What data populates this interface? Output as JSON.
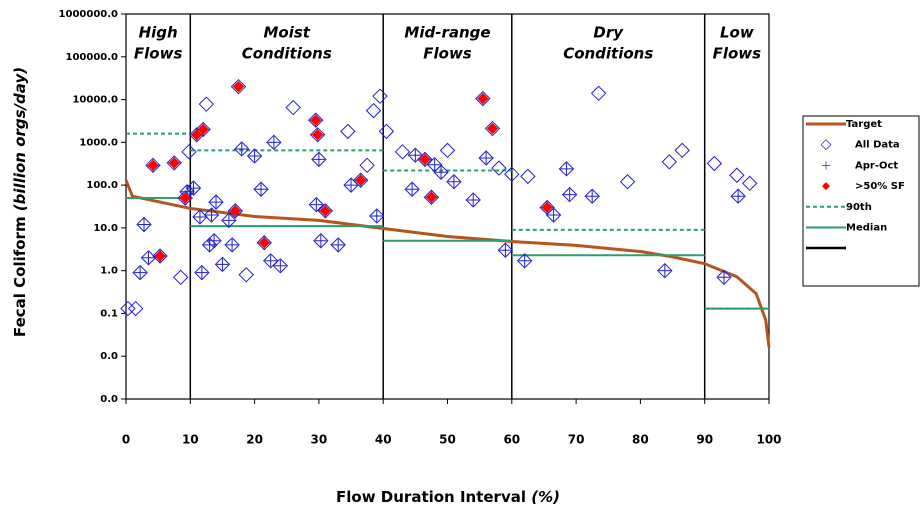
{
  "chart_data": {
    "type": "scatter",
    "y_label": "Fecal Coliform",
    "y_label_unit": "(billion orgs/day)",
    "x_label": "Flow Duration Interval",
    "x_label_unit": "(%)",
    "xlim": [
      0,
      100
    ],
    "xticks": [
      0,
      10,
      20,
      30,
      40,
      50,
      60,
      70,
      80,
      90,
      100
    ],
    "ylim": [
      0.001,
      1000000
    ],
    "log_y": true,
    "yticks": [
      {
        "value": 0.001,
        "label": "0.0"
      },
      {
        "value": 0.01,
        "label": "0.0"
      },
      {
        "value": 0.1,
        "label": "0.1"
      },
      {
        "value": 1,
        "label": "1.0"
      },
      {
        "value": 10,
        "label": "10.0"
      },
      {
        "value": 100,
        "label": "100.0"
      },
      {
        "value": 1000,
        "label": "1000.0"
      },
      {
        "value": 10000,
        "label": "10000.0"
      },
      {
        "value": 100000,
        "label": "100000.0"
      },
      {
        "value": 1000000,
        "label": "1000000.0"
      }
    ],
    "zones": [
      {
        "label": [
          "High",
          "Flows"
        ],
        "start": 0,
        "end": 10
      },
      {
        "label": [
          "Moist",
          "Conditions"
        ],
        "start": 10,
        "end": 40
      },
      {
        "label": [
          "Mid-range",
          "Flows"
        ],
        "start": 40,
        "end": 60
      },
      {
        "label": [
          "Dry",
          "Conditions"
        ],
        "start": 60,
        "end": 90
      },
      {
        "label": [
          "Low",
          "Flows"
        ],
        "start": 90,
        "end": 100
      }
    ],
    "legend": "right",
    "series": [
      {
        "name": "Target",
        "style": "line",
        "color": "#b5541c",
        "x": [
          0,
          1,
          10,
          20,
          30,
          40,
          50,
          60,
          70,
          80,
          85,
          90,
          95,
          98,
          99.5,
          100
        ],
        "values": [
          130,
          55,
          28.5,
          18.5,
          15,
          9.7,
          6.3,
          4.8,
          3.9,
          2.8,
          2.1,
          1.46,
          0.72,
          0.29,
          0.07,
          0.016
        ]
      },
      {
        "name": "All Data",
        "style": "diamond-open",
        "color": "#1f1fd0",
        "x": [
          0.3,
          1.5,
          2.2,
          2.8,
          3.5,
          4.2,
          5.3,
          7.5,
          8.5,
          9.2,
          9.5,
          9.8,
          10.5,
          11,
          11.5,
          11.8,
          12,
          12.5,
          13,
          13.3,
          13.7,
          14,
          15,
          16,
          16.5,
          17,
          17.5,
          18,
          18.7,
          20,
          21,
          21.5,
          22.5,
          23,
          24,
          26,
          29.5,
          29.6,
          29.8,
          30,
          30.3,
          31,
          33,
          34.5,
          35,
          36.5,
          37.5,
          38.5,
          39,
          39.5,
          40.5,
          43,
          44.5,
          45,
          46.5,
          47.5,
          48,
          49,
          50,
          51,
          54,
          55.5,
          56,
          57,
          58,
          59,
          60,
          62,
          62.5,
          65.5,
          66.5,
          68.5,
          69,
          72.5,
          73.5,
          78,
          83.8,
          84.5,
          86.5,
          91.5,
          93,
          95,
          95.2,
          97
        ],
        "values": [
          0.13,
          0.13,
          0.9,
          12,
          2,
          290,
          2.2,
          330,
          0.7,
          50,
          70,
          600,
          85,
          1500,
          18,
          0.9,
          2000,
          7800,
          4,
          20,
          5,
          40,
          1.4,
          15,
          4,
          25,
          20000,
          700,
          0.8,
          480,
          80,
          4.5,
          1.7,
          1000,
          1.3,
          6500,
          3300,
          35,
          1500,
          400,
          5,
          25,
          4,
          1800,
          100,
          130,
          290,
          5500,
          19,
          12000,
          1800,
          600,
          80,
          500,
          400,
          52,
          300,
          200,
          650,
          120,
          45,
          10500,
          430,
          2100,
          250,
          3,
          180,
          1.7,
          160,
          30,
          20,
          240,
          60,
          55,
          14000,
          120,
          1.0,
          350,
          650,
          320,
          0.7,
          170,
          55,
          110
        ]
      },
      {
        "name": "Apr-Oct",
        "style": "plus",
        "color": "#1f1fd0",
        "x": [
          2.2,
          2.8,
          3.5,
          4.2,
          5.3,
          7.5,
          9.2,
          9.5,
          10.5,
          11,
          11.5,
          11.8,
          12,
          13,
          13.3,
          13.7,
          14,
          15,
          16,
          16.5,
          17,
          18,
          20,
          21,
          21.5,
          22.5,
          23,
          24,
          29.5,
          29.6,
          29.8,
          30,
          30.3,
          31,
          33,
          35,
          36.5,
          39,
          44.5,
          45,
          46.5,
          47.5,
          48,
          49,
          51,
          54,
          56,
          59,
          62,
          65.5,
          66.5,
          68.5,
          69,
          72.5,
          83.8,
          93,
          95.2
        ],
        "values": [
          0.9,
          12,
          2,
          290,
          2.2,
          330,
          50,
          70,
          85,
          1500,
          18,
          0.9,
          2000,
          4,
          20,
          5,
          40,
          1.4,
          15,
          4,
          25,
          700,
          480,
          80,
          4.5,
          1.7,
          1000,
          1.3,
          3300,
          35,
          1500,
          400,
          5,
          25,
          4,
          100,
          130,
          19,
          80,
          500,
          400,
          52,
          300,
          200,
          120,
          45,
          430,
          3,
          1.7,
          30,
          20,
          240,
          60,
          55,
          1.0,
          0.7,
          55
        ]
      },
      {
        "name": ">50% SF",
        "style": "diamond-filled",
        "color": "#ff0000",
        "x": [
          4.2,
          5.3,
          7.5,
          9.2,
          11,
          12,
          17,
          17.5,
          21.5,
          29.5,
          29.8,
          31,
          36.5,
          46.5,
          47.5,
          55.5,
          57,
          65.5
        ],
        "values": [
          290,
          2.2,
          330,
          50,
          1500,
          2000,
          25,
          20000,
          4.5,
          3300,
          1500,
          25,
          130,
          400,
          52,
          10500,
          2100,
          30
        ]
      },
      {
        "name": "90th",
        "style": "dashed",
        "color": "#2e9e6a",
        "x": [
          0,
          10,
          10,
          10,
          40,
          40,
          40,
          60,
          60,
          60,
          90,
          90,
          90,
          100
        ],
        "values": [
          1600,
          1600,
          null,
          650,
          650,
          null,
          220,
          220,
          null,
          9,
          9,
          null,
          0.13,
          0.13
        ]
      },
      {
        "name": "Median",
        "style": "solid",
        "color": "#2e9e6a",
        "x": [
          0,
          10,
          10,
          10,
          40,
          40,
          40,
          60,
          60,
          60,
          90,
          90,
          90,
          100
        ],
        "values": [
          50,
          50,
          null,
          11,
          11,
          null,
          5,
          5,
          null,
          2.3,
          2.3,
          null,
          0.13,
          0.13
        ]
      }
    ]
  }
}
